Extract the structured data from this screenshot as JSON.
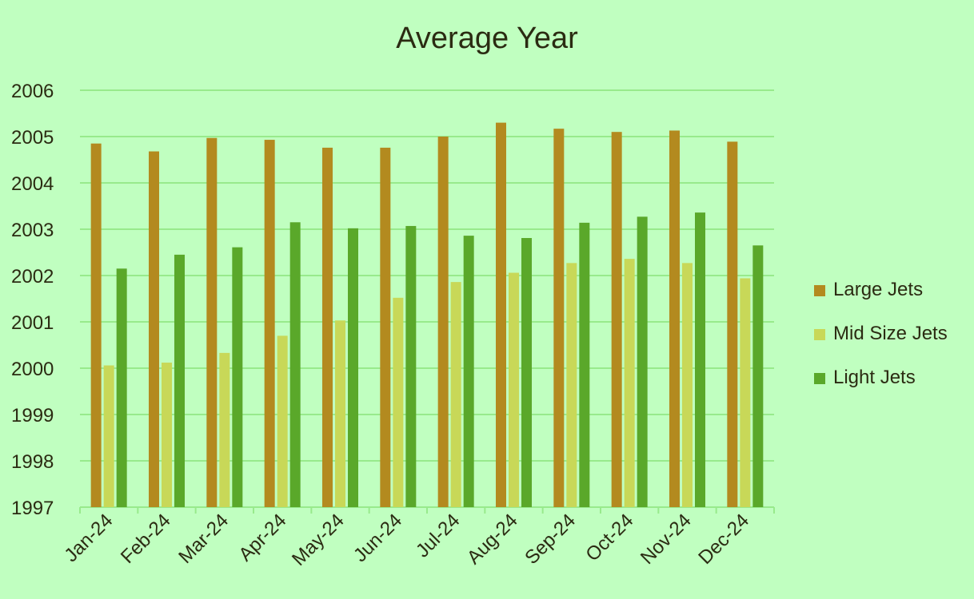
{
  "chart_data": {
    "type": "bar",
    "title": "Average Year",
    "xlabel": "",
    "ylabel": "",
    "ylim": [
      1997,
      2006
    ],
    "yticks": [
      1997,
      1998,
      1999,
      2000,
      2001,
      2002,
      2003,
      2004,
      2005,
      2006
    ],
    "grid": true,
    "legend_position": "right",
    "categories": [
      "Jan-24",
      "Feb-24",
      "Mar-24",
      "Apr-24",
      "May-24",
      "Jun-24",
      "Jul-24",
      "Aug-24",
      "Sep-24",
      "Oct-24",
      "Nov-24",
      "Dec-24"
    ],
    "series": [
      {
        "name": "Large Jets",
        "color": "#b38a1f",
        "values": [
          2004.85,
          2004.68,
          2004.97,
          2004.93,
          2004.76,
          2004.76,
          2005.0,
          2005.3,
          2005.17,
          2005.1,
          2005.13,
          2004.89
        ]
      },
      {
        "name": "Mid Size Jets",
        "color": "#c8d858",
        "values": [
          2000.06,
          2000.12,
          2000.33,
          2000.7,
          2001.03,
          2001.52,
          2001.86,
          2002.06,
          2002.27,
          2002.36,
          2002.27,
          2001.94
        ]
      },
      {
        "name": "Light Jets",
        "color": "#5aa82a",
        "values": [
          2002.15,
          2002.45,
          2002.61,
          2003.15,
          2003.02,
          2003.07,
          2002.86,
          2002.81,
          2003.14,
          2003.27,
          2003.36,
          2002.65
        ]
      }
    ]
  },
  "colors": {
    "background": "#c0ffc0",
    "gridline": "#98ea8c",
    "axis": "#98ea8c",
    "text": "#2b2b12"
  }
}
